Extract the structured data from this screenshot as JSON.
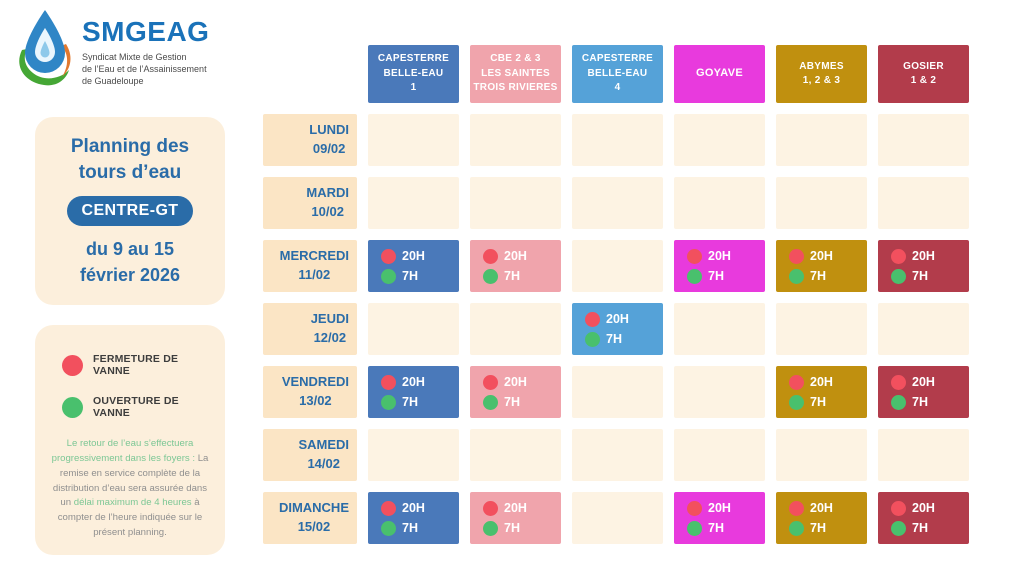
{
  "logo": {
    "name": "SMGEAG",
    "tagline_lines": [
      "Syndicat Mixte de Gestion",
      "de l’Eau et de l’Assainissement",
      "de Guadeloupe"
    ]
  },
  "info_card": {
    "title_lines": [
      "Planning des",
      "tours d’eau"
    ],
    "badge_label": "CENTRE-GT",
    "date_lines": [
      "du 9 au 15",
      "février 2026"
    ]
  },
  "legend": {
    "items": [
      {
        "icon": "red-dot",
        "label": "FERMETURE DE VANNE",
        "color": "#f2505e"
      },
      {
        "icon": "green-dot",
        "label": "OUVERTURE DE VANNE",
        "color": "#49c06d"
      }
    ],
    "note_segments": [
      {
        "text": "Le retour de l’eau s’effectuera progressivement dans les foyers : ",
        "tone": "green"
      },
      {
        "text": "La remise en service complète de la distribution d’eau sera assurée dans un ",
        "tone": "gray"
      },
      {
        "text": "délai maximum de 4 heures",
        "tone": "green"
      },
      {
        "text": " à compter de l’heure indiquée sur le présent planning.",
        "tone": "gray"
      }
    ]
  },
  "schedule": {
    "zones": [
      {
        "id": "capesterre-belle-eau-1",
        "label_lines": [
          "CAPESTERRE",
          "BELLE-EAU",
          "1"
        ],
        "color": "#4a79ba"
      },
      {
        "id": "cbe-2-3-les-saintes-trois-rivieres",
        "label_lines": [
          "CBE 2 & 3",
          "LES SAINTES",
          "TROIS RIVIERES"
        ],
        "color": "#f0a4ac"
      },
      {
        "id": "capesterre-belle-eau-4",
        "label_lines": [
          "CAPESTERRE",
          "BELLE-EAU",
          "4"
        ],
        "color": "#55a2d8"
      },
      {
        "id": "goyave",
        "label_lines": [
          "GOYAVE"
        ],
        "color": "#e83add"
      },
      {
        "id": "abymes-1-2-3",
        "label_lines": [
          "ABYMES",
          "1, 2 & 3"
        ],
        "color": "#c0900f"
      },
      {
        "id": "gosier-1-2",
        "label_lines": [
          "GOSIER",
          "1 & 2"
        ],
        "color": "#b23c4b"
      }
    ],
    "days": [
      {
        "name": "LUNDI",
        "date": "09/02",
        "entries": [
          null,
          null,
          null,
          null,
          null,
          null
        ]
      },
      {
        "name": "MARDI",
        "date": "10/02",
        "entries": [
          null,
          null,
          null,
          null,
          null,
          null
        ]
      },
      {
        "name": "MERCREDI",
        "date": "11/02",
        "entries": [
          {
            "close": "20H",
            "open": "7H"
          },
          {
            "close": "20H",
            "open": "7H"
          },
          null,
          {
            "close": "20H",
            "open": "7H"
          },
          {
            "close": "20H",
            "open": "7H"
          },
          {
            "close": "20H",
            "open": "7H"
          }
        ]
      },
      {
        "name": "JEUDI",
        "date": "12/02",
        "entries": [
          null,
          null,
          {
            "close": "20H",
            "open": "7H"
          },
          null,
          null,
          null
        ]
      },
      {
        "name": "VENDREDI",
        "date": "13/02",
        "entries": [
          {
            "close": "20H",
            "open": "7H"
          },
          {
            "close": "20H",
            "open": "7H"
          },
          null,
          null,
          {
            "close": "20H",
            "open": "7H"
          },
          {
            "close": "20H",
            "open": "7H"
          }
        ]
      },
      {
        "name": "SAMEDI",
        "date": "14/02",
        "entries": [
          null,
          null,
          null,
          null,
          null,
          null
        ]
      },
      {
        "name": "DIMANCHE",
        "date": "15/02",
        "entries": [
          {
            "close": "20H",
            "open": "7H"
          },
          {
            "close": "20H",
            "open": "7H"
          },
          null,
          {
            "close": "20H",
            "open": "7H"
          },
          {
            "close": "20H",
            "open": "7H"
          },
          {
            "close": "20H",
            "open": "7H"
          }
        ]
      }
    ]
  },
  "colors": {
    "close_dot": "#f2505e",
    "open_dot": "#49c06d",
    "primary_blue": "#2a6ca8",
    "day_cell_bg": "#fbe5c5",
    "empty_cell_bg": "#fdf3e3",
    "card_bg": "#fcefdc"
  }
}
